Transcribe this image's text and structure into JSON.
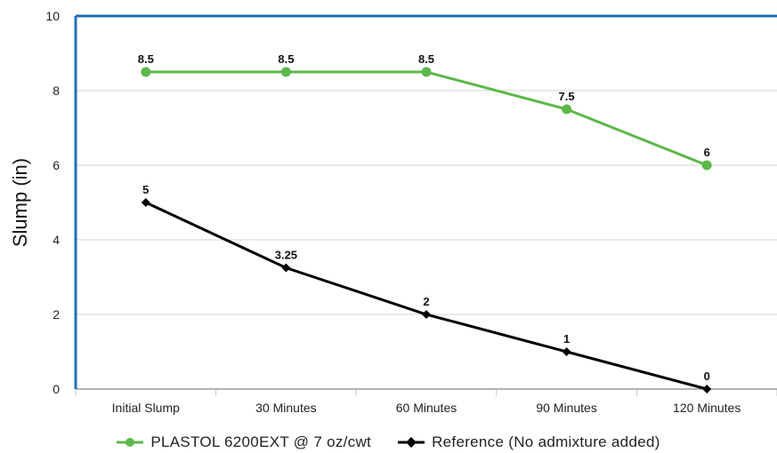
{
  "chart_data": {
    "type": "line",
    "title": "",
    "xlabel": "",
    "ylabel": "Slump (in)",
    "ylim": [
      0,
      10
    ],
    "yticks": [
      0,
      2,
      4,
      6,
      8,
      10
    ],
    "categories": [
      "Initial Slump",
      "30 Minutes",
      "60 Minutes",
      "90 Minutes",
      "120 Minutes"
    ],
    "grid": true,
    "legend_position": "bottom",
    "series": [
      {
        "name": "PLASTOL 6200EXT @ 7 oz/cwt",
        "values": [
          8.5,
          8.5,
          8.5,
          7.5,
          6
        ],
        "data_labels": [
          "8.5",
          "8.5",
          "8.5",
          "7.5",
          "6"
        ],
        "color": "#5cb84a",
        "marker": "circle"
      },
      {
        "name": "Reference (No admixture added)",
        "values": [
          5,
          3.25,
          2,
          1,
          0
        ],
        "data_labels": [
          "5",
          "3.25",
          "2",
          "1",
          "0"
        ],
        "color": "#000000",
        "marker": "diamond"
      }
    ],
    "axis_color": "#1f6fb5"
  }
}
